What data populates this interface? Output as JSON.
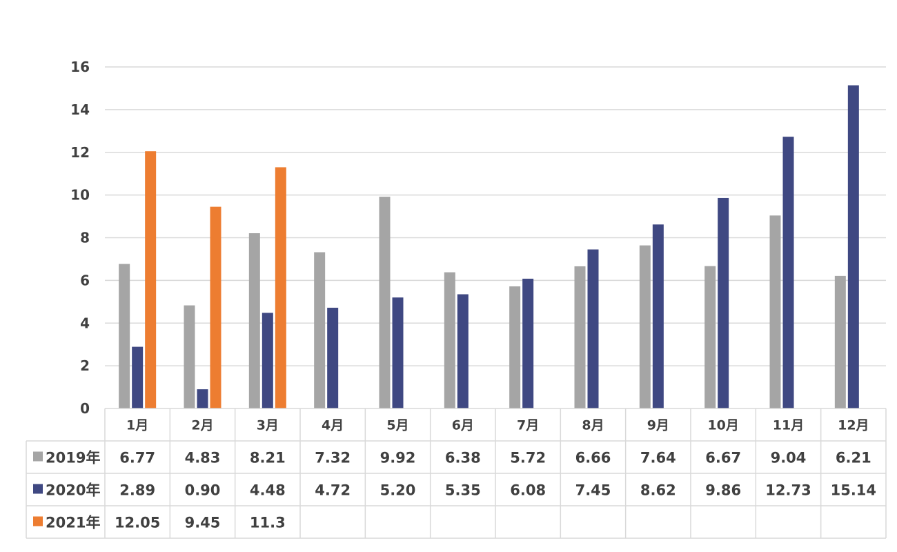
{
  "chart_data": {
    "type": "bar",
    "categories": [
      "1月",
      "2月",
      "3月",
      "4月",
      "5月",
      "6月",
      "7月",
      "8月",
      "9月",
      "10月",
      "11月",
      "12月"
    ],
    "series": [
      {
        "name": "2019年",
        "color": "#a5a5a5",
        "values": [
          6.77,
          4.83,
          8.21,
          7.32,
          9.92,
          6.38,
          5.72,
          6.66,
          7.64,
          6.67,
          9.04,
          6.21
        ],
        "labels": [
          "6.77",
          "4.83",
          "8.21",
          "7.32",
          "9.92",
          "6.38",
          "5.72",
          "6.66",
          "7.64",
          "6.67",
          "9.04",
          "6.21"
        ]
      },
      {
        "name": "2020年",
        "color": "#3f4882",
        "values": [
          2.89,
          0.9,
          4.48,
          4.72,
          5.2,
          5.35,
          6.08,
          7.45,
          8.62,
          9.86,
          12.73,
          15.14
        ],
        "labels": [
          "2.89",
          "0.90",
          "4.48",
          "4.72",
          "5.20",
          "5.35",
          "6.08",
          "7.45",
          "8.62",
          "9.86",
          "12.73",
          "15.14"
        ]
      },
      {
        "name": "2021年",
        "color": "#ed7d31",
        "values": [
          12.05,
          9.45,
          11.3,
          null,
          null,
          null,
          null,
          null,
          null,
          null,
          null,
          null
        ],
        "labels": [
          "12.05",
          "9.45",
          "11.3",
          "",
          "",
          "",
          "",
          "",
          "",
          "",
          "",
          ""
        ]
      }
    ],
    "yticks": [
      "0",
      "2",
      "4",
      "6",
      "8",
      "10",
      "12",
      "14",
      "16"
    ],
    "ylim": [
      0,
      16
    ],
    "grid": true,
    "data_table": true,
    "legend": "in-table"
  }
}
